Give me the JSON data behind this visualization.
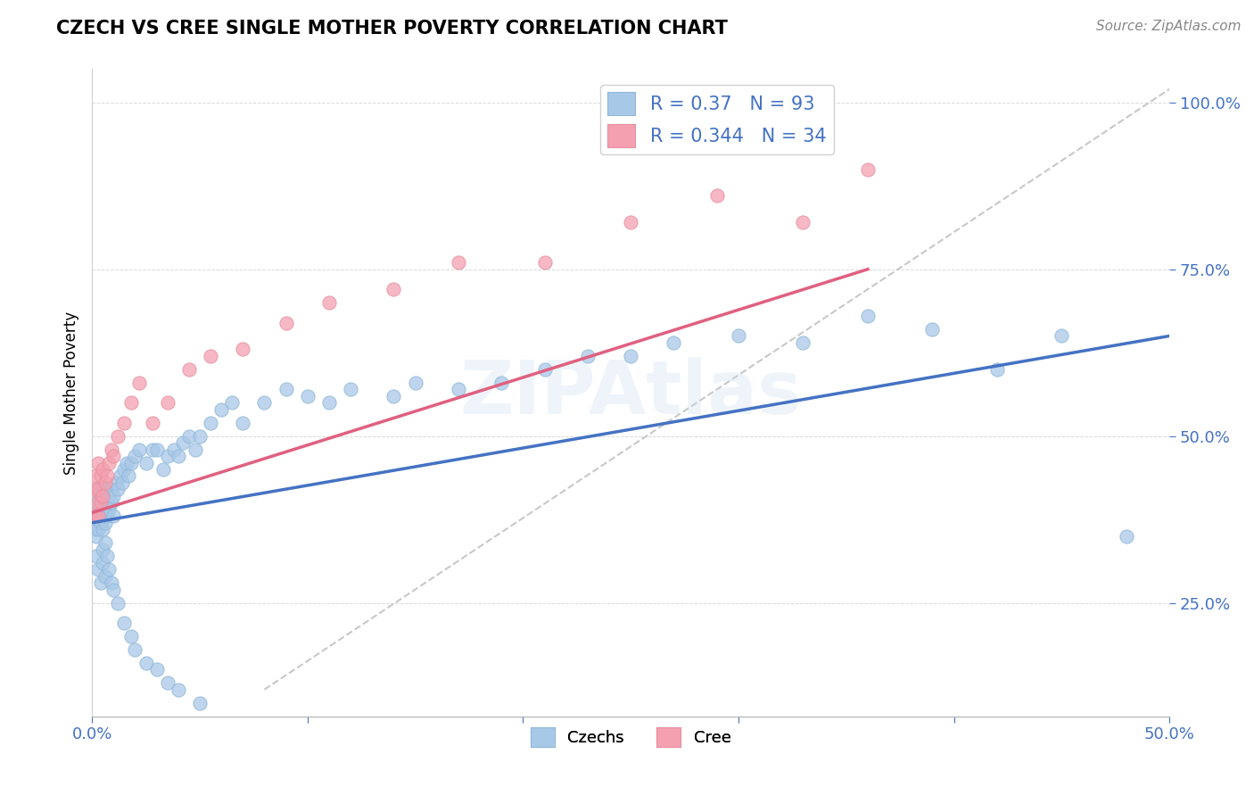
{
  "title": "CZECH VS CREE SINGLE MOTHER POVERTY CORRELATION CHART",
  "source": "Source: ZipAtlas.com",
  "ylabel": "Single Mother Poverty",
  "xlim": [
    0.0,
    0.5
  ],
  "ylim": [
    0.08,
    1.05
  ],
  "xticks": [
    0.0,
    0.1,
    0.2,
    0.3,
    0.4,
    0.5
  ],
  "xticklabels": [
    "0.0%",
    "",
    "",
    "",
    "",
    "50.0%"
  ],
  "yticks": [
    0.25,
    0.5,
    0.75,
    1.0
  ],
  "yticklabels": [
    "25.0%",
    "50.0%",
    "75.0%",
    "100.0%"
  ],
  "czech_R": 0.37,
  "czech_N": 93,
  "cree_R": 0.344,
  "cree_N": 34,
  "czech_color": "#a8c8e8",
  "cree_color": "#f4a0b0",
  "czech_line_color": "#4472c4",
  "cree_line_color": "#e06080",
  "ref_line_color": "#c0c0c0",
  "watermark": "ZIPAtlas",
  "czech_x": [
    0.001,
    0.001,
    0.002,
    0.002,
    0.002,
    0.003,
    0.003,
    0.003,
    0.003,
    0.004,
    0.004,
    0.004,
    0.005,
    0.005,
    0.005,
    0.005,
    0.006,
    0.006,
    0.006,
    0.007,
    0.007,
    0.007,
    0.008,
    0.008,
    0.009,
    0.009,
    0.01,
    0.01,
    0.011,
    0.012,
    0.013,
    0.014,
    0.015,
    0.016,
    0.017,
    0.018,
    0.02,
    0.022,
    0.025,
    0.028,
    0.03,
    0.033,
    0.035,
    0.038,
    0.04,
    0.042,
    0.045,
    0.048,
    0.05,
    0.055,
    0.06,
    0.065,
    0.07,
    0.08,
    0.09,
    0.1,
    0.11,
    0.12,
    0.14,
    0.15,
    0.17,
    0.19,
    0.21,
    0.23,
    0.25,
    0.27,
    0.3,
    0.33,
    0.36,
    0.39,
    0.42,
    0.45,
    0.48,
    0.002,
    0.003,
    0.004,
    0.005,
    0.005,
    0.006,
    0.006,
    0.007,
    0.008,
    0.009,
    0.01,
    0.012,
    0.015,
    0.018,
    0.02,
    0.025,
    0.03,
    0.035,
    0.04,
    0.05
  ],
  "czech_y": [
    0.36,
    0.38,
    0.35,
    0.38,
    0.4,
    0.36,
    0.38,
    0.4,
    0.42,
    0.37,
    0.39,
    0.41,
    0.36,
    0.38,
    0.4,
    0.42,
    0.37,
    0.39,
    0.41,
    0.38,
    0.4,
    0.42,
    0.39,
    0.41,
    0.4,
    0.42,
    0.38,
    0.41,
    0.43,
    0.42,
    0.44,
    0.43,
    0.45,
    0.46,
    0.44,
    0.46,
    0.47,
    0.48,
    0.46,
    0.48,
    0.48,
    0.45,
    0.47,
    0.48,
    0.47,
    0.49,
    0.5,
    0.48,
    0.5,
    0.52,
    0.54,
    0.55,
    0.52,
    0.55,
    0.57,
    0.56,
    0.55,
    0.57,
    0.56,
    0.58,
    0.57,
    0.58,
    0.6,
    0.62,
    0.62,
    0.64,
    0.65,
    0.64,
    0.68,
    0.66,
    0.6,
    0.65,
    0.35,
    0.32,
    0.3,
    0.28,
    0.33,
    0.31,
    0.29,
    0.34,
    0.32,
    0.3,
    0.28,
    0.27,
    0.25,
    0.22,
    0.2,
    0.18,
    0.16,
    0.15,
    0.13,
    0.12,
    0.1
  ],
  "cree_x": [
    0.001,
    0.001,
    0.002,
    0.002,
    0.003,
    0.003,
    0.003,
    0.004,
    0.004,
    0.005,
    0.005,
    0.006,
    0.007,
    0.008,
    0.009,
    0.01,
    0.012,
    0.015,
    0.018,
    0.022,
    0.028,
    0.035,
    0.045,
    0.055,
    0.07,
    0.09,
    0.11,
    0.14,
    0.17,
    0.21,
    0.25,
    0.29,
    0.33,
    0.36
  ],
  "cree_y": [
    0.38,
    0.42,
    0.4,
    0.44,
    0.38,
    0.42,
    0.46,
    0.4,
    0.44,
    0.41,
    0.45,
    0.43,
    0.44,
    0.46,
    0.48,
    0.47,
    0.5,
    0.52,
    0.55,
    0.58,
    0.52,
    0.55,
    0.6,
    0.62,
    0.63,
    0.67,
    0.7,
    0.72,
    0.76,
    0.76,
    0.82,
    0.86,
    0.82,
    0.9
  ],
  "czech_trendline_x": [
    0.0,
    0.5
  ],
  "czech_trendline_y": [
    0.37,
    0.65
  ],
  "cree_trendline_x": [
    0.0,
    0.36
  ],
  "cree_trendline_y": [
    0.385,
    0.75
  ]
}
